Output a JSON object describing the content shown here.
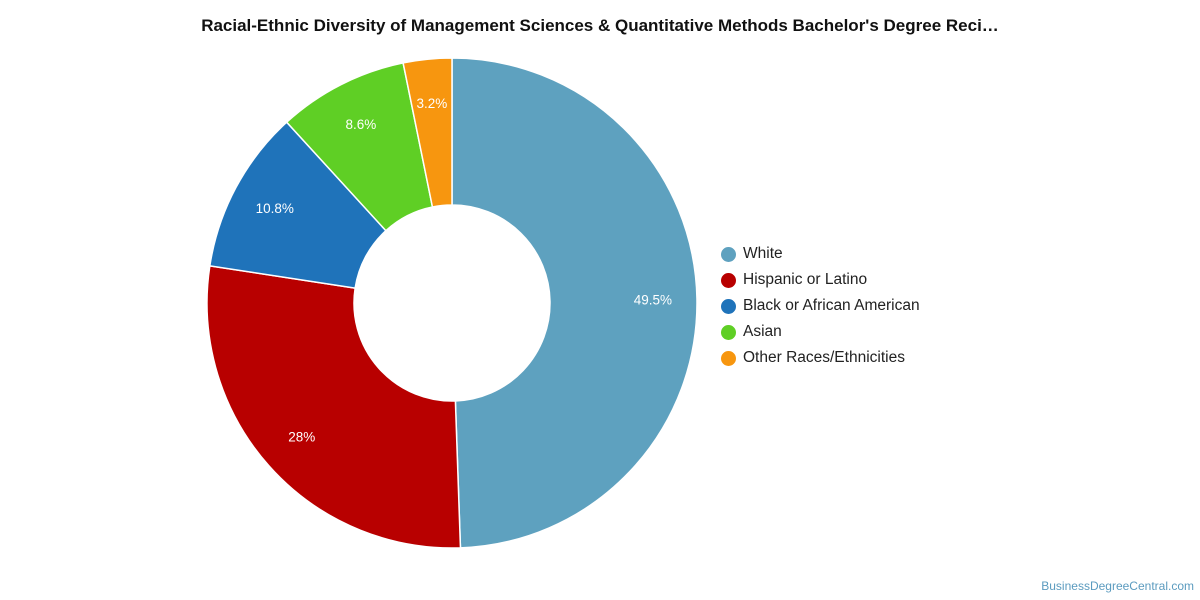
{
  "chart_data": {
    "type": "pie",
    "title": "Racial-Ethnic Diversity of Management Sciences & Quantitative Methods Bachelor's Degree Reci…",
    "donut": true,
    "legend_position": "right",
    "categories": [
      "White",
      "Hispanic or Latino",
      "Black or African American",
      "Asian",
      "Other Races/Ethnicities"
    ],
    "values": [
      49.5,
      28,
      10.8,
      8.6,
      3.2
    ],
    "value_labels": [
      "49.5%",
      "28%",
      "10.8%",
      "8.6%",
      "3.2%"
    ],
    "colors": [
      "#5ea1bf",
      "#b80000",
      "#1f73ba",
      "#5fcf25",
      "#f7960f"
    ]
  },
  "credit": "BusinessDegreeCentral.com"
}
